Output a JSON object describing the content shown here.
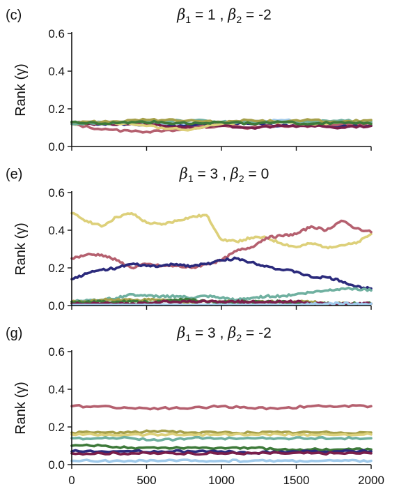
{
  "chart_data": [
    {
      "type": "line",
      "panel_label": "(c)",
      "title": {
        "beta1_symbol": "β",
        "beta1_sub": "1",
        "beta1_value": " = 1 ,  ",
        "beta2_symbol": "β",
        "beta2_sub": "2",
        "beta2_value": " = -2"
      },
      "ylabel": "Rank (γ)",
      "xlabel": "",
      "xlim": [
        0,
        2000
      ],
      "ylim": [
        0,
        0.6
      ],
      "xticks": [
        0,
        500,
        1000,
        1500,
        2000
      ],
      "xtick_labels": [],
      "yticks": [
        "0.0",
        "0.2",
        "0.4",
        "0.6"
      ],
      "x": [
        0,
        200,
        400,
        600,
        800,
        1000,
        1200,
        1400,
        1600,
        1800,
        2000
      ],
      "series": [
        {
          "color": "#9fc9ea",
          "values": [
            0.12,
            0.12,
            0.13,
            0.12,
            0.12,
            0.13,
            0.13,
            0.14,
            0.13,
            0.13,
            0.13
          ]
        },
        {
          "color": "#2b2a7c",
          "values": [
            0.13,
            0.12,
            0.12,
            0.11,
            0.11,
            0.12,
            0.12,
            0.11,
            0.12,
            0.11,
            0.11
          ]
        },
        {
          "color": "#b5606f",
          "values": [
            0.12,
            0.09,
            0.08,
            0.08,
            0.1,
            0.11,
            0.1,
            0.11,
            0.11,
            0.12,
            0.12
          ]
        },
        {
          "color": "#7a1e4a",
          "values": [
            0.12,
            0.12,
            0.12,
            0.11,
            0.1,
            0.11,
            0.1,
            0.11,
            0.11,
            0.1,
            0.11
          ]
        },
        {
          "color": "#ddd07a",
          "values": [
            0.12,
            0.13,
            0.12,
            0.1,
            0.09,
            0.12,
            0.13,
            0.13,
            0.12,
            0.13,
            0.13
          ]
        },
        {
          "color": "#6fb0a0",
          "values": [
            0.12,
            0.13,
            0.13,
            0.13,
            0.14,
            0.13,
            0.13,
            0.13,
            0.13,
            0.14,
            0.13
          ]
        },
        {
          "color": "#a6a04a",
          "values": [
            0.13,
            0.13,
            0.14,
            0.14,
            0.14,
            0.13,
            0.14,
            0.13,
            0.14,
            0.13,
            0.14
          ]
        },
        {
          "color": "#3e7a3a",
          "values": [
            0.13,
            0.12,
            0.13,
            0.13,
            0.12,
            0.13,
            0.12,
            0.13,
            0.12,
            0.13,
            0.12
          ]
        }
      ]
    },
    {
      "type": "line",
      "panel_label": "(e)",
      "title": {
        "beta1_symbol": "β",
        "beta1_sub": "1",
        "beta1_value": " = 3 ,  ",
        "beta2_symbol": "β",
        "beta2_sub": "2",
        "beta2_value": " = 0"
      },
      "ylabel": "Rank (γ)",
      "xlabel": "",
      "xlim": [
        0,
        2000
      ],
      "ylim": [
        0,
        0.6
      ],
      "xticks": [
        0,
        500,
        1000,
        1500,
        2000
      ],
      "xtick_labels": [],
      "yticks": [
        "0.0",
        "0.2",
        "0.4",
        "0.6"
      ],
      "x": [
        0,
        100,
        200,
        300,
        400,
        500,
        600,
        700,
        800,
        900,
        1000,
        1100,
        1200,
        1300,
        1400,
        1500,
        1600,
        1700,
        1800,
        1900,
        2000
      ],
      "series": [
        {
          "color": "#ddd07a",
          "values": [
            0.49,
            0.45,
            0.42,
            0.47,
            0.49,
            0.44,
            0.43,
            0.45,
            0.47,
            0.48,
            0.35,
            0.34,
            0.36,
            0.36,
            0.33,
            0.31,
            0.33,
            0.31,
            0.32,
            0.33,
            0.38
          ]
        },
        {
          "color": "#b5606f",
          "values": [
            0.25,
            0.27,
            0.27,
            0.24,
            0.2,
            0.22,
            0.21,
            0.21,
            0.2,
            0.22,
            0.24,
            0.29,
            0.31,
            0.36,
            0.37,
            0.38,
            0.42,
            0.4,
            0.45,
            0.41,
            0.39
          ]
        },
        {
          "color": "#2b2a7c",
          "values": [
            0.14,
            0.17,
            0.19,
            0.2,
            0.22,
            0.21,
            0.21,
            0.22,
            0.21,
            0.22,
            0.24,
            0.25,
            0.23,
            0.21,
            0.19,
            0.18,
            0.15,
            0.15,
            0.13,
            0.1,
            0.09
          ]
        },
        {
          "color": "#6fb0a0",
          "values": [
            0.02,
            0.03,
            0.03,
            0.04,
            0.06,
            0.05,
            0.05,
            0.05,
            0.04,
            0.05,
            0.04,
            0.03,
            0.04,
            0.05,
            0.05,
            0.06,
            0.07,
            0.08,
            0.09,
            0.09,
            0.08
          ]
        },
        {
          "color": "#a6a04a",
          "values": [
            0.02,
            0.02,
            0.03,
            0.03,
            0.03,
            0.03,
            0.03,
            0.02,
            0.02,
            0.02,
            0.02,
            0.02,
            0.02,
            0.02,
            0.02,
            0.02,
            0.02,
            0.01,
            0.01,
            0.01,
            0.01
          ]
        },
        {
          "color": "#3e7a3a",
          "values": [
            0.02,
            0.02,
            0.02,
            0.02,
            0.02,
            0.02,
            0.02,
            0.03,
            0.03,
            0.02,
            0.02,
            0.02,
            0.02,
            0.02,
            0.02,
            0.01,
            0.01,
            0.01,
            0.01,
            0.01,
            0.01
          ]
        },
        {
          "color": "#7a1e4a",
          "values": [
            0.01,
            0.01,
            0.01,
            0.01,
            0.01,
            0.01,
            0.02,
            0.02,
            0.02,
            0.02,
            0.02,
            0.02,
            0.02,
            0.02,
            0.02,
            0.02,
            0.01,
            0.01,
            0.01,
            0.01,
            0.01
          ]
        },
        {
          "color": "#9fc9ea",
          "values": [
            0.0,
            0.0,
            0.0,
            0.0,
            0.0,
            0.0,
            0.0,
            0.0,
            0.0,
            0.0,
            0.0,
            0.0,
            0.0,
            0.0,
            0.0,
            0.0,
            0.01,
            0.01,
            0.01,
            0.01,
            0.01
          ]
        }
      ]
    },
    {
      "type": "line",
      "panel_label": "(g)",
      "title": {
        "beta1_symbol": "β",
        "beta1_sub": "1",
        "beta1_value": " = 3 ,  ",
        "beta2_symbol": "β",
        "beta2_sub": "2",
        "beta2_value": " = -2"
      },
      "ylabel": "Rank (γ)",
      "xlabel": "",
      "xlim": [
        0,
        2000
      ],
      "ylim": [
        0,
        0.6
      ],
      "xticks": [
        0,
        500,
        1000,
        1500,
        2000
      ],
      "xtick_labels": [
        "0",
        "500",
        "1000",
        "1500",
        "2000"
      ],
      "yticks": [
        "0.0",
        "0.2",
        "0.4",
        "0.6"
      ],
      "x": [
        0,
        200,
        400,
        600,
        800,
        1000,
        1200,
        1400,
        1600,
        1800,
        2000
      ],
      "series": [
        {
          "color": "#b5606f",
          "values": [
            0.31,
            0.31,
            0.3,
            0.3,
            0.3,
            0.31,
            0.3,
            0.3,
            0.31,
            0.31,
            0.31
          ]
        },
        {
          "color": "#a6a04a",
          "values": [
            0.17,
            0.17,
            0.17,
            0.18,
            0.17,
            0.17,
            0.17,
            0.17,
            0.17,
            0.17,
            0.17
          ]
        },
        {
          "color": "#ddd07a",
          "values": [
            0.16,
            0.16,
            0.16,
            0.16,
            0.16,
            0.16,
            0.16,
            0.16,
            0.16,
            0.16,
            0.16
          ]
        },
        {
          "color": "#6fb0a0",
          "values": [
            0.14,
            0.14,
            0.14,
            0.13,
            0.14,
            0.14,
            0.14,
            0.14,
            0.14,
            0.14,
            0.14
          ]
        },
        {
          "color": "#3e7a3a",
          "values": [
            0.1,
            0.1,
            0.09,
            0.09,
            0.09,
            0.09,
            0.09,
            0.08,
            0.08,
            0.08,
            0.08
          ]
        },
        {
          "color": "#2b2a7c",
          "values": [
            0.07,
            0.07,
            0.07,
            0.07,
            0.07,
            0.07,
            0.06,
            0.07,
            0.07,
            0.07,
            0.07
          ]
        },
        {
          "color": "#7a1e4a",
          "values": [
            0.06,
            0.06,
            0.06,
            0.06,
            0.06,
            0.06,
            0.06,
            0.06,
            0.06,
            0.06,
            0.06
          ]
        },
        {
          "color": "#9fc9ea",
          "values": [
            0.02,
            0.02,
            0.02,
            0.02,
            0.02,
            0.02,
            0.02,
            0.02,
            0.02,
            0.02,
            0.02
          ]
        }
      ]
    }
  ]
}
